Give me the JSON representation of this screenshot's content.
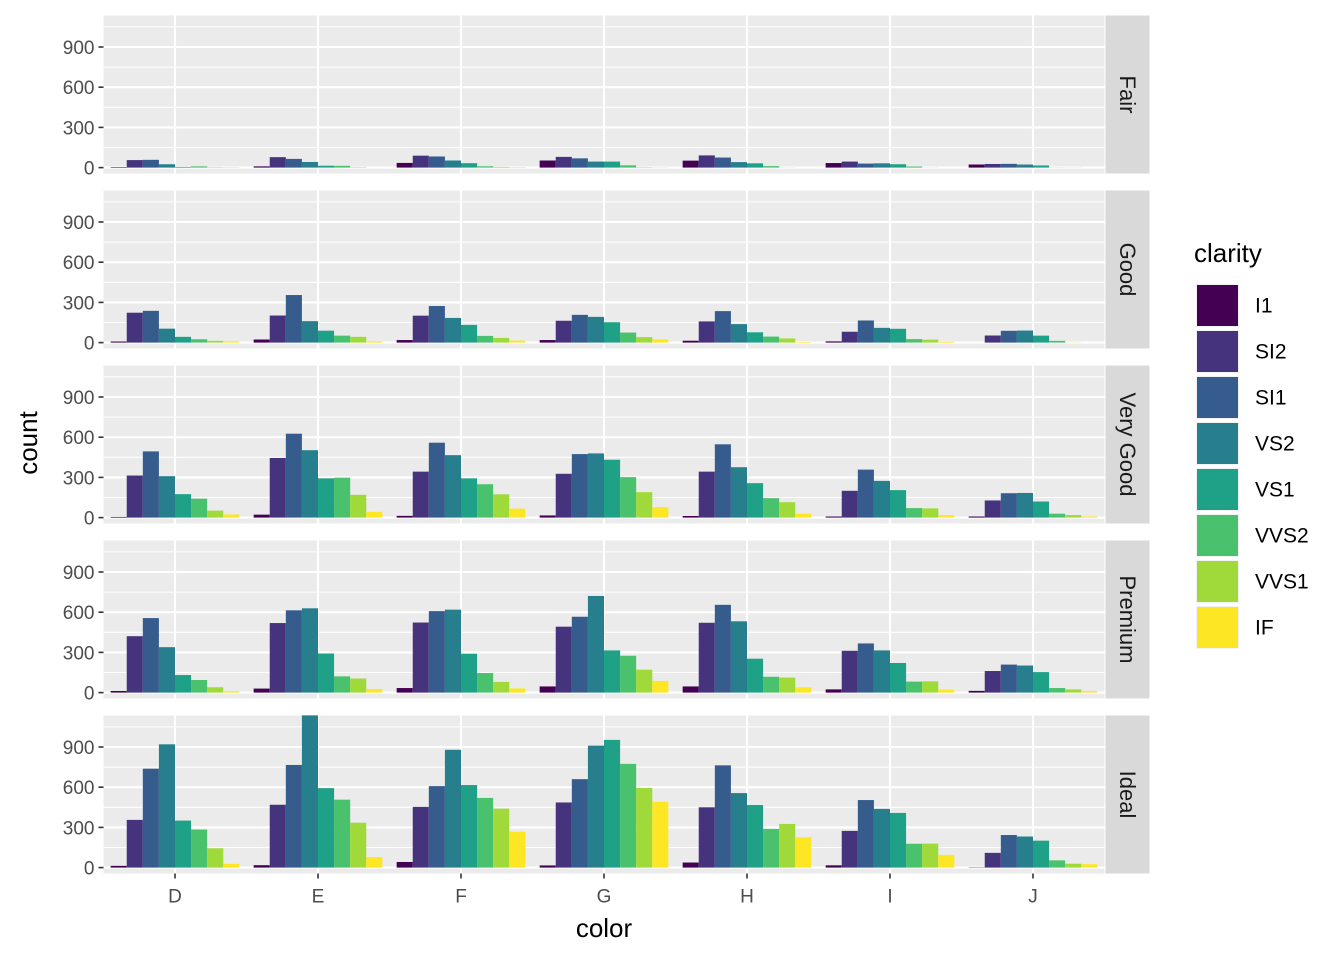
{
  "chart_data": {
    "type": "bar",
    "position": "dodge",
    "x": "color",
    "fill": "clarity",
    "facet_rows": [
      "Fair",
      "Good",
      "Very Good",
      "Premium",
      "Ideal"
    ],
    "categories": [
      "D",
      "E",
      "F",
      "G",
      "H",
      "I",
      "J"
    ],
    "xlabel": "color",
    "ylabel": "count",
    "ylim": [
      0,
      1135
    ],
    "yticks": [
      0,
      300,
      600,
      900
    ],
    "grid": true,
    "legend": {
      "title": "clarity",
      "placement": "right"
    },
    "series": [
      {
        "name": "I1",
        "color": "#440154"
      },
      {
        "name": "SI2",
        "color": "#46337E"
      },
      {
        "name": "SI1",
        "color": "#365C8D"
      },
      {
        "name": "VS2",
        "color": "#277F8E"
      },
      {
        "name": "VS1",
        "color": "#1FA187"
      },
      {
        "name": "VVS2",
        "color": "#4AC16D"
      },
      {
        "name": "VVS1",
        "color": "#9FDA3A"
      },
      {
        "name": "IF",
        "color": "#FDE725"
      }
    ],
    "panels": [
      {
        "cut": "Fair",
        "values": [
          [
            4,
            56,
            58,
            25,
            5,
            9,
            3,
            3
          ],
          [
            9,
            78,
            65,
            42,
            14,
            13,
            3,
            0
          ],
          [
            35,
            89,
            83,
            53,
            33,
            10,
            5,
            4
          ],
          [
            53,
            80,
            69,
            45,
            45,
            17,
            3,
            2
          ],
          [
            52,
            91,
            75,
            41,
            32,
            11,
            1,
            0
          ],
          [
            34,
            45,
            30,
            32,
            25,
            8,
            1,
            0
          ],
          [
            23,
            27,
            28,
            23,
            16,
            1,
            1,
            0
          ]
        ]
      },
      {
        "cut": "Good",
        "values": [
          [
            8,
            223,
            237,
            104,
            43,
            25,
            13,
            9
          ],
          [
            23,
            202,
            355,
            160,
            89,
            52,
            43,
            9
          ],
          [
            19,
            201,
            273,
            184,
            132,
            50,
            35,
            15
          ],
          [
            19,
            163,
            207,
            192,
            152,
            75,
            41,
            24
          ],
          [
            14,
            158,
            235,
            138,
            77,
            45,
            31,
            4
          ],
          [
            9,
            81,
            165,
            110,
            103,
            26,
            22,
            6
          ],
          [
            0,
            53,
            88,
            90,
            52,
            13,
            1,
            0
          ]
        ]
      },
      {
        "cut": "Very Good",
        "values": [
          [
            5,
            314,
            494,
            309,
            175,
            141,
            52,
            23
          ],
          [
            22,
            445,
            626,
            503,
            293,
            298,
            170,
            43
          ],
          [
            13,
            343,
            559,
            466,
            293,
            249,
            174,
            67
          ],
          [
            16,
            327,
            474,
            479,
            432,
            302,
            190,
            79
          ],
          [
            12,
            343,
            547,
            376,
            257,
            145,
            115,
            29
          ],
          [
            8,
            200,
            358,
            274,
            205,
            71,
            69,
            19
          ],
          [
            8,
            128,
            182,
            184,
            120,
            29,
            19,
            8
          ]
        ]
      },
      {
        "cut": "Premium",
        "values": [
          [
            12,
            421,
            556,
            339,
            131,
            94,
            40,
            10
          ],
          [
            30,
            519,
            614,
            629,
            292,
            121,
            105,
            27
          ],
          [
            34,
            523,
            608,
            619,
            290,
            146,
            80,
            31
          ],
          [
            46,
            492,
            566,
            721,
            315,
            275,
            171,
            87
          ],
          [
            46,
            521,
            655,
            532,
            253,
            118,
            112,
            40
          ],
          [
            24,
            312,
            367,
            315,
            221,
            82,
            84,
            23
          ],
          [
            13,
            161,
            209,
            202,
            153,
            34,
            24,
            12
          ]
        ]
      },
      {
        "cut": "Ideal",
        "values": [
          [
            13,
            356,
            738,
            920,
            351,
            284,
            144,
            28
          ],
          [
            18,
            469,
            766,
            1136,
            593,
            507,
            335,
            79
          ],
          [
            42,
            453,
            608,
            879,
            616,
            520,
            440,
            268
          ],
          [
            16,
            486,
            660,
            910,
            953,
            774,
            594,
            491
          ],
          [
            38,
            450,
            763,
            556,
            467,
            289,
            326,
            226
          ],
          [
            17,
            274,
            504,
            438,
            408,
            178,
            179,
            95
          ],
          [
            2,
            110,
            243,
            232,
            201,
            54,
            29,
            25
          ]
        ]
      }
    ]
  }
}
